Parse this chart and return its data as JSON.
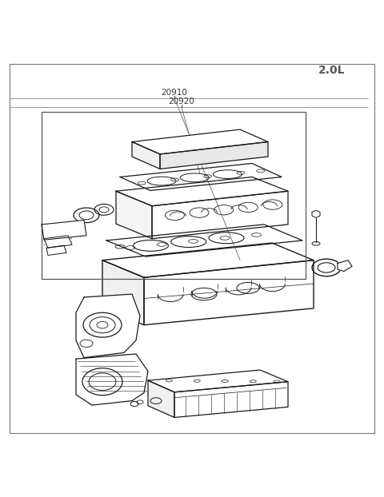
{
  "title": "2.0L",
  "label_20910": "20910",
  "label_20920": "20920",
  "bg_color": "#ffffff",
  "line_color": "#1a1a1a",
  "label_color": "#444444",
  "title_color": "#555555",
  "fig_width": 4.8,
  "fig_height": 6.22,
  "dpi": 100
}
